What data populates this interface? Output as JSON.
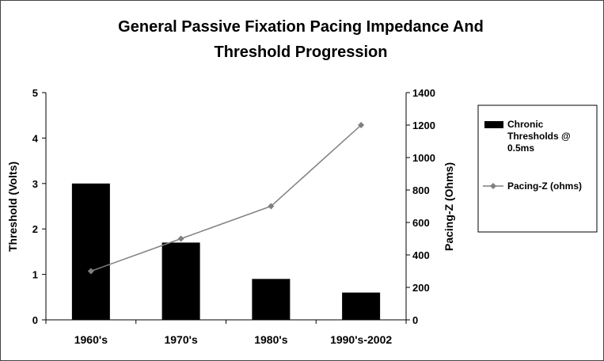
{
  "chart_data": {
    "type": "bar",
    "title_lines": [
      "General Passive Fixation Pacing Impedance And",
      "Threshold Progression"
    ],
    "categories": [
      "1960's",
      "1970's",
      "1980's",
      "1990's-2002"
    ],
    "series": [
      {
        "name_lines": [
          "Chronic",
          "Thresholds @",
          "0.5ms"
        ],
        "type": "bar",
        "axis": "left",
        "values": [
          3.0,
          1.7,
          0.9,
          0.6
        ],
        "color": "#000000"
      },
      {
        "name_lines": [
          "Pacing-Z (ohms)"
        ],
        "type": "line",
        "axis": "right",
        "values": [
          300,
          500,
          700,
          1200
        ],
        "color": "#7f7f7f"
      }
    ],
    "y_left": {
      "label": "Threshold (Volts)",
      "min": 0,
      "max": 5,
      "ticks": [
        0,
        1,
        2,
        3,
        4,
        5
      ]
    },
    "y_right": {
      "label": "Pacing-Z (Ohms)",
      "min": 0,
      "max": 1400,
      "ticks": [
        0,
        200,
        400,
        600,
        800,
        1000,
        1200,
        1400
      ]
    },
    "grid": false,
    "legend_position": "right"
  }
}
